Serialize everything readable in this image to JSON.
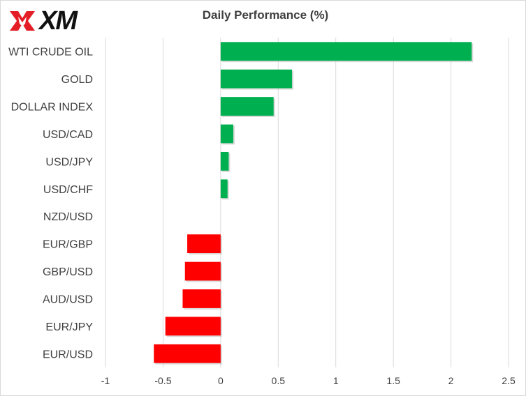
{
  "brand": {
    "logo_text": "XM"
  },
  "chart_data": {
    "type": "bar",
    "orientation": "horizontal",
    "title": "Daily Performance  (%)",
    "categories": [
      "WTI CRUDE OIL",
      "GOLD",
      "DOLLAR INDEX",
      "USD/CAD",
      "USD/JPY",
      "USD/CHF",
      "NZD/USD",
      "EUR/GBP",
      "GBP/USD",
      "AUD/USD",
      "EUR/JPY",
      "EUR/USD"
    ],
    "values": [
      2.18,
      0.62,
      0.46,
      0.11,
      0.07,
      0.06,
      0.0,
      -0.29,
      -0.31,
      -0.33,
      -0.48,
      -0.58
    ],
    "xlim": [
      -1,
      2.5
    ],
    "xticks": [
      -1,
      -0.5,
      0,
      0.5,
      1,
      1.5,
      2,
      2.5
    ],
    "xtick_labels": [
      "-1",
      "-0.5",
      "0",
      "0.5",
      "1",
      "1.5",
      "2",
      "2.5"
    ],
    "grid": "vertical",
    "colors": {
      "positive": "#00b050",
      "negative": "#ff0000",
      "grid": "#d9d9d9",
      "text": "#404040"
    }
  }
}
